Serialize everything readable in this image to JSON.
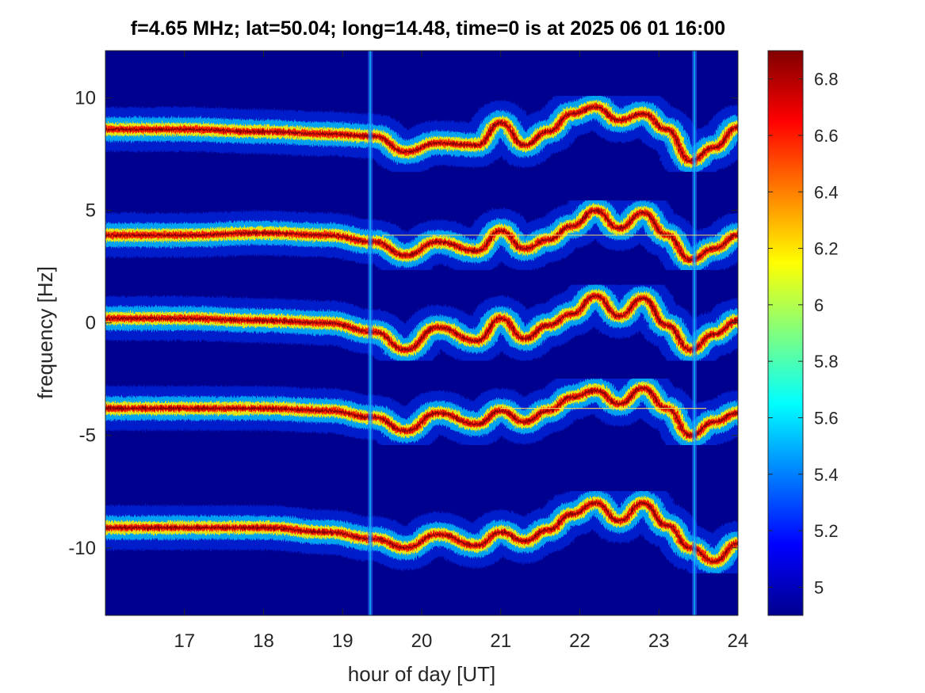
{
  "chart_data": {
    "type": "heatmap",
    "title": "f=4.65 MHz;  lat=50.04; long=14.48, time=0 is at 2025 06 01 16:00",
    "xlabel": "hour of day [UT]",
    "ylabel": "frequency [Hz]",
    "xlim": [
      16,
      24
    ],
    "ylim": [
      -13.0,
      12.1
    ],
    "xticks": [
      17,
      18,
      19,
      20,
      21,
      22,
      23,
      24
    ],
    "xtick_labels": [
      "17",
      "18",
      "19",
      "20",
      "21",
      "22",
      "23",
      "24"
    ],
    "yticks": [
      -10,
      -5,
      0,
      5,
      10
    ],
    "ytick_labels": [
      "-10",
      "-5",
      "0",
      "5",
      "10"
    ],
    "colorbar": {
      "colormap": "jet",
      "range": [
        4.9,
        6.9
      ],
      "ticks": [
        5,
        5.2,
        5.4,
        5.6,
        5.8,
        6,
        6.2,
        6.4,
        6.6,
        6.8
      ],
      "tick_labels": [
        "5",
        "5.2",
        "5.4",
        "5.6",
        "5.8",
        "6",
        "6.2",
        "6.4",
        "6.6",
        "6.8"
      ]
    },
    "background_color": "#00008f",
    "traces": [
      {
        "hours": [
          16.0,
          17.0,
          18.0,
          18.8,
          19.4,
          19.8,
          20.2,
          20.7,
          21.0,
          21.3,
          21.6,
          21.9,
          22.2,
          22.5,
          22.8,
          23.1,
          23.4,
          23.7,
          24.0
        ],
        "freq": [
          8.6,
          8.6,
          8.5,
          8.4,
          8.3,
          7.6,
          8.0,
          7.9,
          8.9,
          7.9,
          8.5,
          9.3,
          9.6,
          9.0,
          9.3,
          8.6,
          7.2,
          7.8,
          8.7
        ]
      },
      {
        "hours": [
          16.0,
          17.0,
          18.0,
          18.8,
          19.4,
          19.8,
          20.2,
          20.7,
          21.0,
          21.3,
          21.6,
          21.9,
          22.2,
          22.5,
          22.8,
          23.1,
          23.4,
          23.7,
          24.0
        ],
        "freq": [
          3.9,
          3.9,
          4.0,
          3.9,
          3.6,
          3.0,
          3.6,
          3.2,
          4.1,
          3.3,
          3.7,
          4.3,
          5.0,
          4.2,
          4.9,
          3.9,
          2.8,
          3.3,
          3.9
        ]
      },
      {
        "hours": [
          16.0,
          17.0,
          18.0,
          18.8,
          19.4,
          19.8,
          20.2,
          20.7,
          21.0,
          21.3,
          21.6,
          21.9,
          22.2,
          22.5,
          22.8,
          23.1,
          23.4,
          23.7,
          24.0
        ],
        "freq": [
          0.2,
          0.2,
          0.1,
          0.0,
          -0.4,
          -1.2,
          -0.2,
          -0.8,
          0.2,
          -0.7,
          -0.1,
          0.4,
          1.2,
          0.3,
          1.1,
          -0.1,
          -1.2,
          -0.5,
          0.1
        ]
      },
      {
        "hours": [
          16.0,
          17.0,
          18.0,
          18.8,
          19.4,
          19.8,
          20.2,
          20.7,
          21.0,
          21.3,
          21.6,
          21.9,
          22.2,
          22.5,
          22.8,
          23.1,
          23.4,
          23.7,
          24.0
        ],
        "freq": [
          -3.8,
          -3.8,
          -3.8,
          -3.9,
          -4.2,
          -4.8,
          -4.0,
          -4.5,
          -3.9,
          -4.4,
          -3.9,
          -3.3,
          -3.0,
          -3.6,
          -2.9,
          -3.8,
          -5.0,
          -4.4,
          -4.0
        ]
      },
      {
        "hours": [
          16.0,
          17.0,
          18.0,
          18.8,
          19.4,
          19.8,
          20.2,
          20.7,
          21.0,
          21.3,
          21.6,
          21.9,
          22.2,
          22.5,
          22.8,
          23.1,
          23.4,
          23.7,
          24.0
        ],
        "freq": [
          -9.1,
          -9.1,
          -9.1,
          -9.3,
          -9.6,
          -10.0,
          -9.4,
          -9.9,
          -9.3,
          -9.7,
          -9.2,
          -8.5,
          -8.0,
          -8.8,
          -8.0,
          -9.0,
          -10.0,
          -10.6,
          -9.8
        ]
      }
    ],
    "vertical_artifacts": [
      19.35,
      23.45
    ],
    "horizontal_artifacts": [
      {
        "freq": 3.9,
        "from_hour": 19.5,
        "to_hour": 23.9
      },
      {
        "freq": -3.8,
        "from_hour": 21.0,
        "to_hour": 23.6
      }
    ]
  }
}
